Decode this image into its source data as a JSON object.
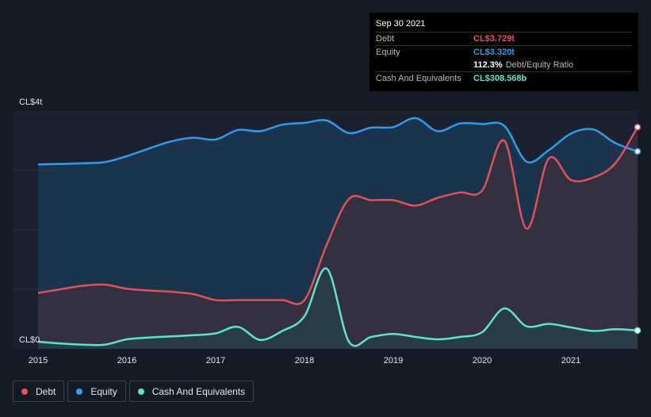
{
  "tooltip": {
    "date": "Sep 30 2021",
    "debt_label": "Debt",
    "debt_value": "CL$3.729t",
    "equity_label": "Equity",
    "equity_value": "CL$3.320t",
    "ratio_value": "112.3%",
    "ratio_label": "Debt/Equity Ratio",
    "cash_label": "Cash And Equivalents",
    "cash_value": "CL$308.568b"
  },
  "legend": {
    "debt": "Debt",
    "equity": "Equity",
    "cash": "Cash And Equivalents"
  },
  "colors": {
    "debt": "#e2515e",
    "equity": "#2f9de8",
    "cash": "#5fe3cf",
    "background": "#151b26"
  },
  "chart_data": {
    "type": "area",
    "ytick_top": "CL$4t",
    "ytick_bottom": "CL$0",
    "ylim": [
      0,
      4
    ],
    "xlim": [
      2015.0,
      2021.75
    ],
    "x_ticks": [
      "2015",
      "2016",
      "2017",
      "2018",
      "2019",
      "2020",
      "2021"
    ],
    "series": [
      {
        "name": "Debt",
        "color": "#e2515e",
        "points": [
          [
            2015.0,
            0.94
          ],
          [
            2015.25,
            1.0
          ],
          [
            2015.5,
            1.06
          ],
          [
            2015.75,
            1.08
          ],
          [
            2016.0,
            1.01
          ],
          [
            2016.25,
            0.98
          ],
          [
            2016.5,
            0.96
          ],
          [
            2016.75,
            0.92
          ],
          [
            2017.0,
            0.82
          ],
          [
            2017.25,
            0.82
          ],
          [
            2017.5,
            0.82
          ],
          [
            2017.75,
            0.82
          ],
          [
            2018.0,
            0.82
          ],
          [
            2018.25,
            1.75
          ],
          [
            2018.5,
            2.52
          ],
          [
            2018.75,
            2.5
          ],
          [
            2019.0,
            2.5
          ],
          [
            2019.25,
            2.41
          ],
          [
            2019.5,
            2.54
          ],
          [
            2019.75,
            2.63
          ],
          [
            2020.0,
            2.66
          ],
          [
            2020.25,
            3.5
          ],
          [
            2020.5,
            2.02
          ],
          [
            2020.75,
            3.2
          ],
          [
            2021.0,
            2.84
          ],
          [
            2021.25,
            2.88
          ],
          [
            2021.5,
            3.12
          ],
          [
            2021.75,
            3.729
          ]
        ]
      },
      {
        "name": "Equity",
        "color": "#2f9de8",
        "points": [
          [
            2015.0,
            3.1
          ],
          [
            2015.25,
            3.11
          ],
          [
            2015.5,
            3.12
          ],
          [
            2015.75,
            3.14
          ],
          [
            2016.0,
            3.24
          ],
          [
            2016.25,
            3.37
          ],
          [
            2016.5,
            3.49
          ],
          [
            2016.75,
            3.55
          ],
          [
            2017.0,
            3.52
          ],
          [
            2017.25,
            3.68
          ],
          [
            2017.5,
            3.66
          ],
          [
            2017.75,
            3.77
          ],
          [
            2018.0,
            3.8
          ],
          [
            2018.25,
            3.84
          ],
          [
            2018.5,
            3.63
          ],
          [
            2018.75,
            3.72
          ],
          [
            2019.0,
            3.73
          ],
          [
            2019.25,
            3.88
          ],
          [
            2019.5,
            3.66
          ],
          [
            2019.75,
            3.79
          ],
          [
            2020.0,
            3.78
          ],
          [
            2020.25,
            3.75
          ],
          [
            2020.5,
            3.15
          ],
          [
            2020.75,
            3.34
          ],
          [
            2021.0,
            3.62
          ],
          [
            2021.25,
            3.69
          ],
          [
            2021.5,
            3.46
          ],
          [
            2021.75,
            3.32
          ]
        ]
      },
      {
        "name": "Cash And Equivalents",
        "color": "#5fe3cf",
        "points": [
          [
            2015.0,
            0.12
          ],
          [
            2015.25,
            0.09
          ],
          [
            2015.5,
            0.07
          ],
          [
            2015.75,
            0.07
          ],
          [
            2016.0,
            0.16
          ],
          [
            2016.25,
            0.19
          ],
          [
            2016.5,
            0.21
          ],
          [
            2016.75,
            0.23
          ],
          [
            2017.0,
            0.26
          ],
          [
            2017.25,
            0.37
          ],
          [
            2017.5,
            0.15
          ],
          [
            2017.75,
            0.3
          ],
          [
            2018.0,
            0.55
          ],
          [
            2018.25,
            1.35
          ],
          [
            2018.5,
            0.12
          ],
          [
            2018.75,
            0.2
          ],
          [
            2019.0,
            0.25
          ],
          [
            2019.25,
            0.2
          ],
          [
            2019.5,
            0.16
          ],
          [
            2019.75,
            0.2
          ],
          [
            2020.0,
            0.28
          ],
          [
            2020.25,
            0.68
          ],
          [
            2020.5,
            0.38
          ],
          [
            2020.75,
            0.42
          ],
          [
            2021.0,
            0.36
          ],
          [
            2021.25,
            0.3
          ],
          [
            2021.5,
            0.33
          ],
          [
            2021.75,
            0.309
          ]
        ]
      }
    ]
  }
}
